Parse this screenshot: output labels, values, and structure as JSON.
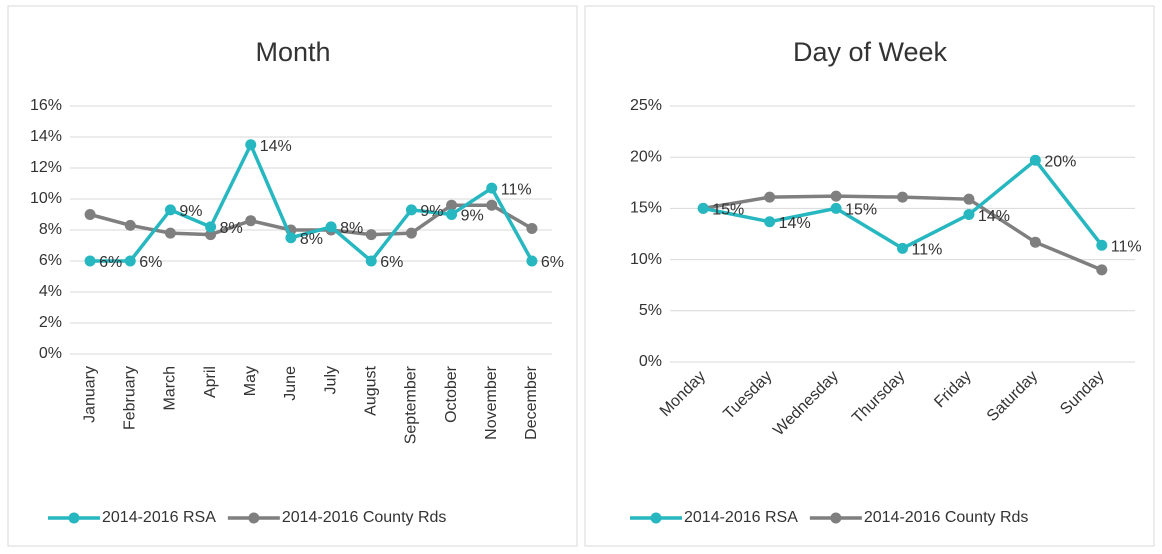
{
  "chart_data": [
    {
      "type": "line",
      "title": "Month",
      "categories": [
        "January",
        "February",
        "March",
        "April",
        "May",
        "June",
        "July",
        "August",
        "September",
        "October",
        "November",
        "December"
      ],
      "series": [
        {
          "name": "2014-2016 RSA",
          "color": "#27b7c0",
          "values": [
            6.0,
            6.0,
            9.3,
            8.2,
            13.5,
            7.5,
            8.2,
            6.0,
            9.3,
            9.0,
            10.7,
            6.0
          ],
          "value_labels": [
            "6%",
            "6%",
            "9%",
            "8%",
            "14%",
            "8%",
            "8%",
            "6%",
            "9%",
            "9%",
            "11%",
            "6%"
          ]
        },
        {
          "name": "2014-2016 County Rds",
          "color": "#7f7f7f",
          "values": [
            9.0,
            8.3,
            7.8,
            7.7,
            8.6,
            8.0,
            8.0,
            7.7,
            7.8,
            9.6,
            9.6,
            8.1
          ]
        }
      ],
      "ylim": [
        0,
        16
      ],
      "yticks": [
        {
          "value": 0,
          "label": "0%"
        },
        {
          "value": 2,
          "label": "2%"
        },
        {
          "value": 4,
          "label": "4%"
        },
        {
          "value": 6,
          "label": "6%"
        },
        {
          "value": 8,
          "label": "8%"
        },
        {
          "value": 10,
          "label": "10%"
        },
        {
          "value": 12,
          "label": "12%"
        },
        {
          "value": 14,
          "label": "14%"
        },
        {
          "value": 16,
          "label": "16%"
        }
      ],
      "grid": true,
      "legend": "bottom",
      "x_label_rotation": -90
    },
    {
      "type": "line",
      "title": "Day of Week",
      "categories": [
        "Monday",
        "Tuesday",
        "Wednesday",
        "Thursday",
        "Friday",
        "Saturday",
        "Sunday"
      ],
      "series": [
        {
          "name": "2014-2016 RSA",
          "color": "#27b7c0",
          "values": [
            15.0,
            13.7,
            15.0,
            11.1,
            14.4,
            19.7,
            11.4
          ],
          "value_labels": [
            "15%",
            "14%",
            "15%",
            "11%",
            "14%",
            "20%",
            "11%"
          ]
        },
        {
          "name": "2014-2016 County Rds",
          "color": "#7f7f7f",
          "values": [
            15.0,
            16.1,
            16.2,
            16.1,
            15.9,
            11.7,
            9.0
          ]
        }
      ],
      "ylim": [
        0,
        25
      ],
      "yticks": [
        {
          "value": 0,
          "label": "0%"
        },
        {
          "value": 5,
          "label": "5%"
        },
        {
          "value": 10,
          "label": "10%"
        },
        {
          "value": 15,
          "label": "15%"
        },
        {
          "value": 20,
          "label": "20%"
        },
        {
          "value": 25,
          "label": "25%"
        }
      ],
      "grid": true,
      "legend": "bottom",
      "x_label_rotation": -45
    }
  ]
}
